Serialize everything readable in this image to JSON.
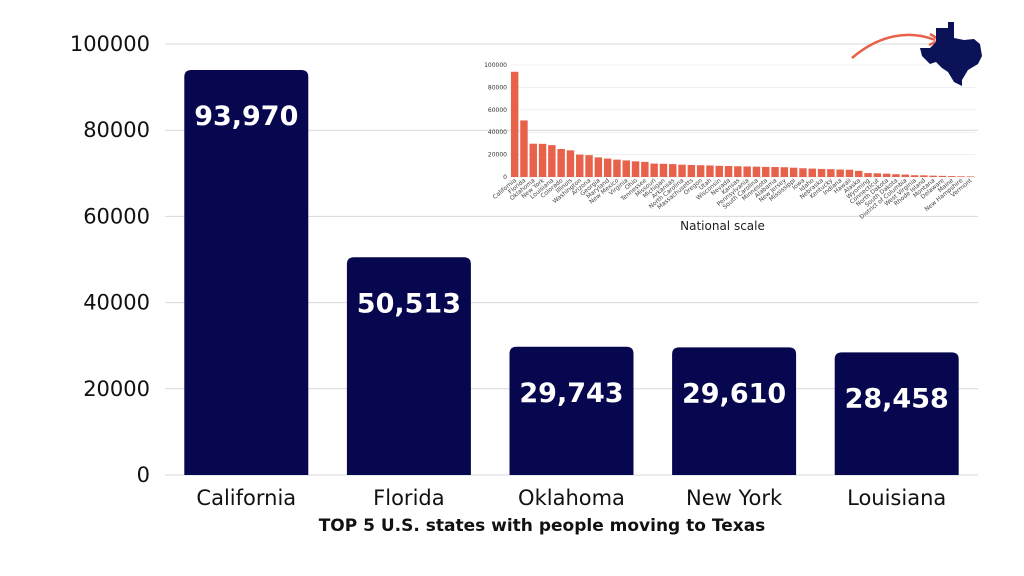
{
  "caption": "TOP 5 U.S. states with people moving to Texas",
  "colors": {
    "main_bar": "#07074f",
    "inset_bar": "#e8614a",
    "arrow": "#e8614a",
    "texas": "#0b1257"
  },
  "icons": [
    "texas-map-icon",
    "curved-arrow-icon"
  ],
  "chart_data": [
    {
      "type": "bar",
      "categories": [
        "California",
        "Florida",
        "Oklahoma",
        "New York",
        "Louisiana"
      ],
      "values": [
        93970,
        50513,
        29743,
        29610,
        28458
      ],
      "value_labels": [
        "93,970",
        "50,513",
        "29,743",
        "29,610",
        "28,458"
      ],
      "yticks": [
        "0",
        "20000",
        "40000",
        "60000",
        "80000",
        "100000"
      ],
      "ylim": [
        0,
        100000
      ],
      "grid": true,
      "title": "",
      "xlabel": "",
      "ylabel": ""
    },
    {
      "type": "bar",
      "xlabel": "National scale",
      "ylim": [
        0,
        100000
      ],
      "yticks": [
        "0",
        "20000",
        "40000",
        "60000",
        "80000",
        "100000"
      ],
      "grid": true,
      "categories": [
        "California",
        "Florida",
        "Oklahoma",
        "New York",
        "Louisiana",
        "Colorado",
        "Illinois",
        "Washington",
        "Arizona",
        "Georgia",
        "Maryland",
        "New Mexico",
        "Virginia",
        "Ohio",
        "Tennessee",
        "Missouri",
        "Michigan",
        "Arkansas",
        "North Carolina",
        "Massachusetts",
        "Oregon",
        "Utah",
        "Wisconsin",
        "Nevada",
        "Kansas",
        "Pennsylvania",
        "South Carolina",
        "Minnesota",
        "Alabama",
        "New Jersey",
        "Mississippi",
        "Iowa",
        "Idaho",
        "Nebraska",
        "Kentucky",
        "Indiana",
        "Hawaii",
        "Alaska",
        "Wyoming",
        "Connecticut",
        "North Dakota",
        "South Dakota",
        "District of Columbia",
        "West Virginia",
        "Rhode Island",
        "Montana",
        "Delaware",
        "Maine",
        "New Hampshire",
        "Vermont"
      ],
      "values": [
        93970,
        50513,
        29743,
        29610,
        28458,
        25000,
        23800,
        20000,
        19500,
        17500,
        16500,
        15500,
        14800,
        14000,
        13500,
        12000,
        11800,
        11500,
        11000,
        10700,
        10500,
        10300,
        10000,
        9800,
        9600,
        9400,
        9200,
        9000,
        8900,
        8700,
        8300,
        7800,
        7500,
        7200,
        7000,
        6700,
        6500,
        5500,
        3500,
        3300,
        3000,
        2500,
        2200,
        1600,
        1500,
        1200,
        1000,
        800,
        600,
        500
      ]
    }
  ]
}
